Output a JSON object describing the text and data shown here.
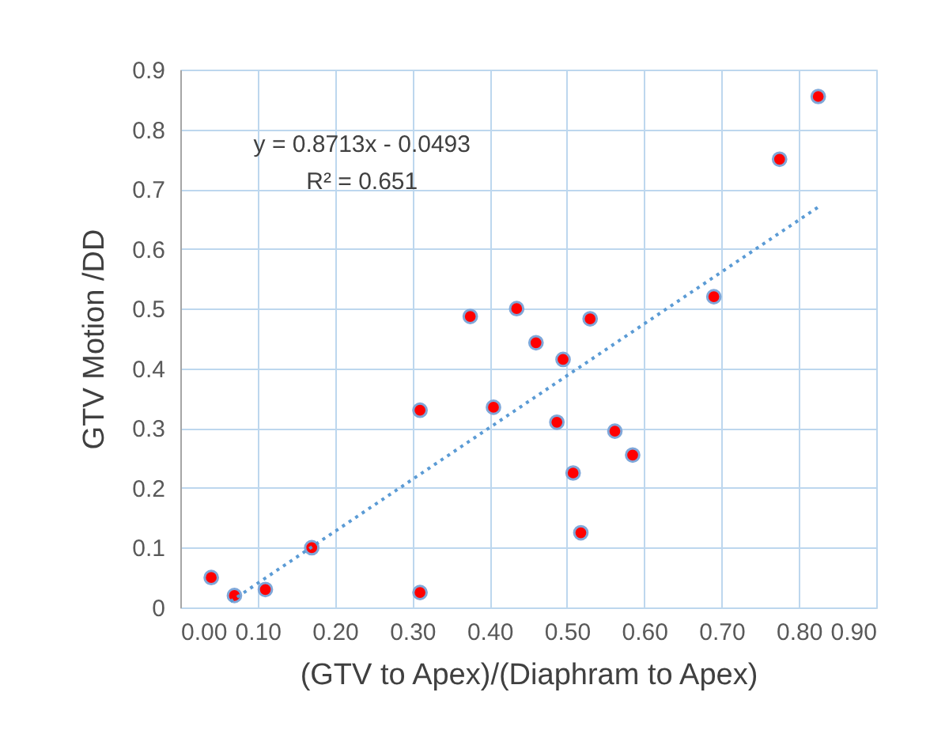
{
  "chart_data": {
    "type": "scatter",
    "xlabel": "(GTV to Apex)/(Diaphram to Apex)",
    "ylabel": "GTV Motion /DD",
    "xlim": [
      0,
      0.9
    ],
    "ylim": [
      0,
      0.9
    ],
    "xticks": [
      {
        "value": 0,
        "label": "0.00"
      },
      {
        "value": 0.1,
        "label": "0.10"
      },
      {
        "value": 0.2,
        "label": "0.20"
      },
      {
        "value": 0.3,
        "label": "0.30"
      },
      {
        "value": 0.4,
        "label": "0.40"
      },
      {
        "value": 0.5,
        "label": "0.50"
      },
      {
        "value": 0.6,
        "label": "0.60"
      },
      {
        "value": 0.7,
        "label": "0.70"
      },
      {
        "value": 0.8,
        "label": "0.80"
      },
      {
        "value": 0.9,
        "label": "0.90"
      }
    ],
    "yticks": [
      {
        "value": 0,
        "label": "0"
      },
      0.1,
      0.2,
      0.3,
      0.4,
      0.5,
      0.6,
      0.7,
      0.8,
      0.9
    ],
    "grid": true,
    "series": [
      {
        "color": "#ff0000",
        "marker": "circle",
        "x": [
          0.04,
          0.07,
          0.11,
          0.17,
          0.31,
          0.31,
          0.405,
          0.375,
          0.435,
          0.46,
          0.495,
          0.487,
          0.508,
          0.518,
          0.53,
          0.562,
          0.585,
          0.69,
          0.775,
          0.825
        ],
        "values": [
          0.05,
          0.02,
          0.03,
          0.1,
          0.025,
          0.33,
          0.335,
          0.487,
          0.5,
          0.443,
          0.415,
          0.31,
          0.225,
          0.125,
          0.483,
          0.295,
          0.255,
          0.52,
          0.75,
          0.855
        ]
      },
      {
        "type": "line",
        "color": "#5b9bd5",
        "line_style": "dotted",
        "x": [
          0.065,
          0.825
        ],
        "values": [
          0.01,
          0.67
        ]
      }
    ],
    "annotations": [
      "y = 0.8713x - 0.0493",
      "R² = 0.651"
    ]
  }
}
